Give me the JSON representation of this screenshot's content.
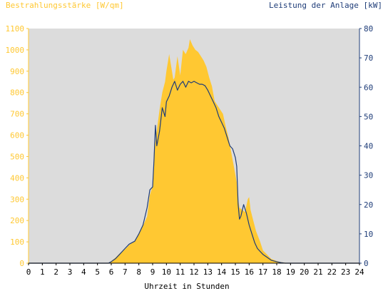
{
  "chart_data": {
    "type": "area",
    "title_left": "Bestrahlungsstärke [W/qm]",
    "title_right": "Leistung der Anlage [kW]",
    "xlabel": "Uhrzeit in Stunden",
    "x_ticks": [
      "0",
      "1",
      "2",
      "3",
      "4",
      "5",
      "6",
      "7",
      "8",
      "9",
      "10",
      "11",
      "12",
      "13",
      "14",
      "15",
      "16",
      "17",
      "18",
      "19",
      "20",
      "21",
      "22",
      "23",
      "24"
    ],
    "y_left_ticks": [
      "0",
      "100",
      "200",
      "300",
      "400",
      "500",
      "600",
      "700",
      "800",
      "900",
      "1000",
      "1100"
    ],
    "y_right_ticks": [
      "0",
      "10",
      "20",
      "30",
      "40",
      "50",
      "60",
      "70",
      "80"
    ],
    "xlim": [
      0,
      24
    ],
    "ylim_left": [
      0,
      1100
    ],
    "ylim_right": [
      0,
      80
    ],
    "grid": false,
    "series": [
      {
        "name": "Bestrahlungsstärke [W/qm]",
        "axis": "left",
        "kind": "area",
        "color": "#FFC832",
        "x": [
          0,
          5.8,
          6.0,
          6.3,
          6.6,
          7.0,
          7.3,
          7.7,
          8.0,
          8.3,
          8.6,
          8.8,
          9.0,
          9.1,
          9.3,
          9.5,
          9.7,
          9.9,
          10.0,
          10.2,
          10.4,
          10.5,
          10.6,
          10.8,
          11.0,
          11.2,
          11.4,
          11.6,
          11.7,
          11.9,
          12.1,
          12.3,
          12.5,
          12.7,
          12.9,
          13.1,
          13.3,
          13.5,
          13.7,
          13.9,
          14.1,
          14.3,
          14.5,
          14.7,
          14.9,
          15.1,
          15.2,
          15.3,
          15.5,
          15.7,
          15.9,
          16.0,
          16.1,
          16.3,
          16.5,
          16.8,
          17.0,
          17.3,
          17.6,
          18.0,
          18.3,
          18.6,
          19.0,
          19.3,
          24
        ],
        "y": [
          0,
          0,
          10,
          25,
          45,
          65,
          85,
          105,
          140,
          175,
          220,
          320,
          360,
          520,
          620,
          720,
          800,
          850,
          900,
          980,
          900,
          860,
          870,
          970,
          880,
          1000,
          980,
          1010,
          1050,
          1020,
          1000,
          990,
          970,
          950,
          920,
          870,
          830,
          760,
          740,
          720,
          700,
          640,
          590,
          520,
          450,
          380,
          300,
          260,
          250,
          240,
          300,
          310,
          250,
          200,
          150,
          100,
          60,
          40,
          20,
          10,
          5,
          2,
          0,
          0,
          0
        ]
      },
      {
        "name": "Leistung der Anlage [kW]",
        "axis": "right",
        "kind": "line",
        "color": "#1E3C78",
        "x": [
          0,
          5.8,
          6.0,
          6.3,
          6.6,
          7.0,
          7.3,
          7.7,
          8.0,
          8.3,
          8.6,
          8.8,
          9.0,
          9.1,
          9.2,
          9.3,
          9.5,
          9.7,
          9.9,
          10.0,
          10.2,
          10.4,
          10.6,
          10.8,
          11.0,
          11.2,
          11.4,
          11.6,
          11.8,
          12.0,
          12.2,
          12.4,
          12.6,
          12.8,
          13.0,
          13.2,
          13.4,
          13.6,
          13.8,
          14.0,
          14.2,
          14.4,
          14.6,
          14.8,
          15.0,
          15.1,
          15.2,
          15.3,
          15.4,
          15.6,
          15.8,
          16.0,
          16.2,
          16.4,
          16.6,
          16.8,
          17.0,
          17.3,
          17.6,
          18.0,
          18.3,
          18.6,
          19.0,
          19.3,
          24
        ],
        "y": [
          0,
          0,
          0.5,
          1.5,
          3,
          5,
          6.5,
          7.5,
          10,
          13,
          19,
          25,
          26,
          35,
          47,
          40,
          45,
          53,
          50,
          55,
          57,
          60,
          62,
          59,
          61,
          62,
          60,
          62,
          61.5,
          62,
          61.5,
          61,
          61,
          60.5,
          59,
          57,
          55,
          53,
          50,
          48,
          46,
          43,
          40,
          39,
          36,
          33,
          20,
          15,
          16,
          20,
          17,
          13,
          10,
          7,
          5,
          4,
          3,
          2,
          1,
          0.5,
          0.2,
          0,
          0,
          0,
          0
        ]
      }
    ]
  }
}
